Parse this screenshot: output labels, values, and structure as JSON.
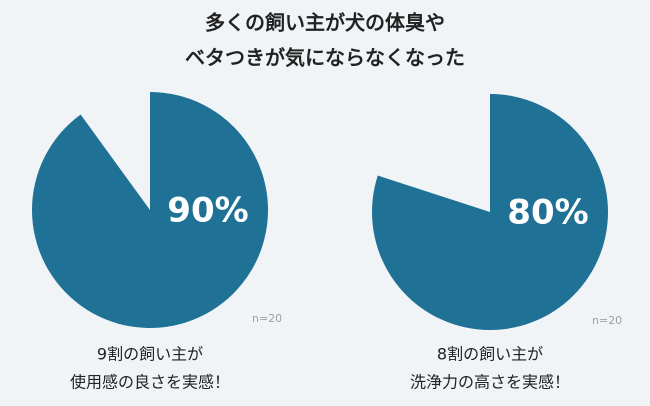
{
  "title": [
    "多くの飼い主が犬の体臭や",
    "ベタつきが気にならなくなった"
  ],
  "chart_data": [
    {
      "type": "pie",
      "values": [
        90
      ],
      "value_labels": [
        "90%"
      ],
      "color": "#1f7195",
      "note": "n=20",
      "caption": [
        "9割の飼い主が",
        "使用感の良さを実感！"
      ]
    },
    {
      "type": "pie",
      "values": [
        80
      ],
      "value_labels": [
        "80%"
      ],
      "color": "#1f7195",
      "note": "n=20",
      "caption": [
        "8割の飼い主が",
        "洗浄力の高さを実感！"
      ]
    }
  ]
}
